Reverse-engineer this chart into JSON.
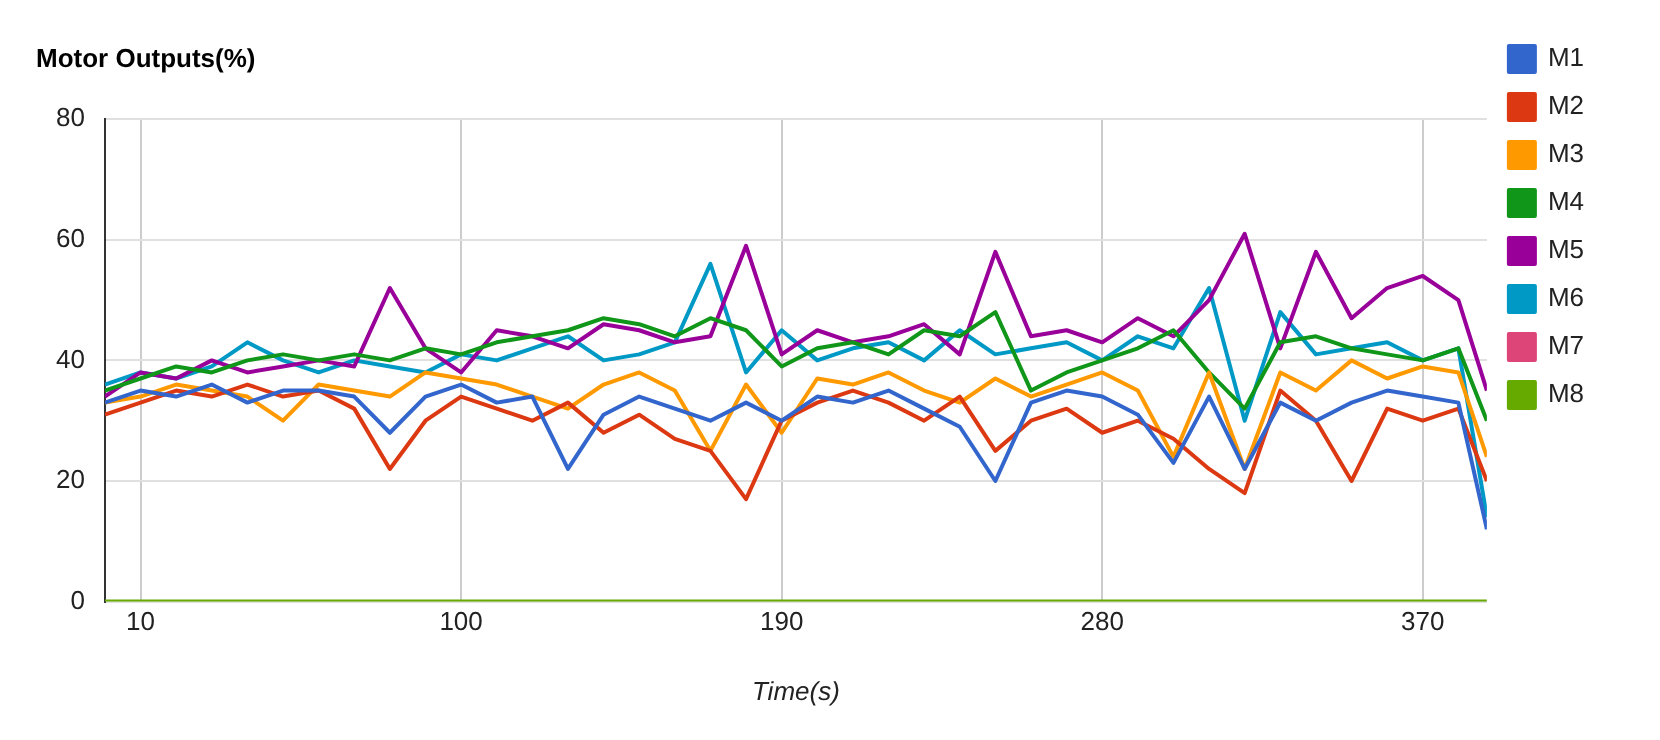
{
  "chart_data": {
    "type": "line",
    "title": "Motor Outputs(%)",
    "xlabel": "Time(s)",
    "x": [
      0,
      10,
      20,
      30,
      40,
      50,
      60,
      70,
      80,
      90,
      100,
      110,
      120,
      130,
      140,
      150,
      160,
      170,
      180,
      190,
      200,
      210,
      220,
      230,
      240,
      250,
      260,
      270,
      280,
      290,
      300,
      310,
      320,
      330,
      340,
      350,
      360,
      370,
      380,
      388
    ],
    "series": [
      {
        "name": "M1",
        "color": "#3366cc",
        "values": [
          33,
          35,
          34,
          36,
          33,
          35,
          35,
          34,
          28,
          34,
          36,
          33,
          34,
          22,
          31,
          34,
          32,
          30,
          33,
          30,
          34,
          33,
          35,
          32,
          29,
          20,
          33,
          35,
          34,
          31,
          23,
          34,
          22,
          33,
          30,
          33,
          35,
          34,
          33,
          12
        ]
      },
      {
        "name": "M2",
        "color": "#dc3912",
        "values": [
          31,
          33,
          35,
          34,
          36,
          34,
          35,
          32,
          22,
          30,
          34,
          32,
          30,
          33,
          28,
          31,
          27,
          25,
          17,
          30,
          33,
          35,
          33,
          30,
          34,
          25,
          30,
          32,
          28,
          30,
          27,
          22,
          18,
          35,
          30,
          20,
          32,
          30,
          32,
          20
        ]
      },
      {
        "name": "M3",
        "color": "#ff9900",
        "values": [
          33,
          34,
          36,
          35,
          34,
          30,
          36,
          35,
          34,
          38,
          37,
          36,
          34,
          32,
          36,
          38,
          35,
          25,
          36,
          28,
          37,
          36,
          38,
          35,
          33,
          37,
          34,
          36,
          38,
          35,
          24,
          38,
          22,
          38,
          35,
          40,
          37,
          39,
          38,
          24
        ]
      },
      {
        "name": "M4",
        "color": "#109618",
        "values": [
          35,
          37,
          39,
          38,
          40,
          41,
          40,
          41,
          40,
          42,
          41,
          43,
          44,
          45,
          47,
          46,
          44,
          47,
          45,
          39,
          42,
          43,
          41,
          45,
          44,
          48,
          35,
          38,
          40,
          42,
          45,
          38,
          32,
          43,
          44,
          42,
          41,
          40,
          42,
          30
        ]
      },
      {
        "name": "M5",
        "color": "#990099",
        "values": [
          34,
          38,
          37,
          40,
          38,
          39,
          40,
          39,
          52,
          42,
          38,
          45,
          44,
          42,
          46,
          45,
          43,
          44,
          59,
          41,
          45,
          43,
          44,
          46,
          41,
          58,
          44,
          45,
          43,
          47,
          44,
          50,
          61,
          42,
          58,
          47,
          52,
          54,
          50,
          35
        ]
      },
      {
        "name": "M6",
        "color": "#0099c6",
        "values": [
          36,
          38,
          37,
          39,
          43,
          40,
          38,
          40,
          39,
          38,
          41,
          40,
          42,
          44,
          40,
          41,
          43,
          56,
          38,
          45,
          40,
          42,
          43,
          40,
          45,
          41,
          42,
          43,
          40,
          44,
          42,
          52,
          30,
          48,
          41,
          42,
          43,
          40,
          42,
          14
        ]
      },
      {
        "name": "M7",
        "color": "#dd4477",
        "values": [
          null,
          null,
          null,
          null,
          null,
          null,
          null,
          null,
          null,
          null,
          null,
          null,
          null,
          null,
          null,
          null,
          null,
          null,
          null,
          null,
          null,
          null,
          null,
          null,
          null,
          null,
          null,
          null,
          null,
          null,
          null,
          null,
          null,
          null,
          null,
          null,
          null,
          null,
          null,
          null
        ]
      },
      {
        "name": "M8",
        "color": "#66aa00",
        "values": [
          0,
          0,
          0,
          0,
          0,
          0,
          0,
          0,
          0,
          0,
          0,
          0,
          0,
          0,
          0,
          0,
          0,
          0,
          0,
          0,
          0,
          0,
          0,
          0,
          0,
          0,
          0,
          0,
          0,
          0,
          0,
          0,
          0,
          0,
          0,
          0,
          0,
          0,
          0,
          0
        ]
      }
    ],
    "xlim": [
      0,
      388
    ],
    "xticks": [
      10,
      100,
      190,
      280,
      370
    ],
    "ylim": [
      0,
      80
    ],
    "yticks": [
      0,
      20,
      40,
      60,
      80
    ],
    "grid": true,
    "legend": "right",
    "marker": "none",
    "line_style": "solid"
  }
}
